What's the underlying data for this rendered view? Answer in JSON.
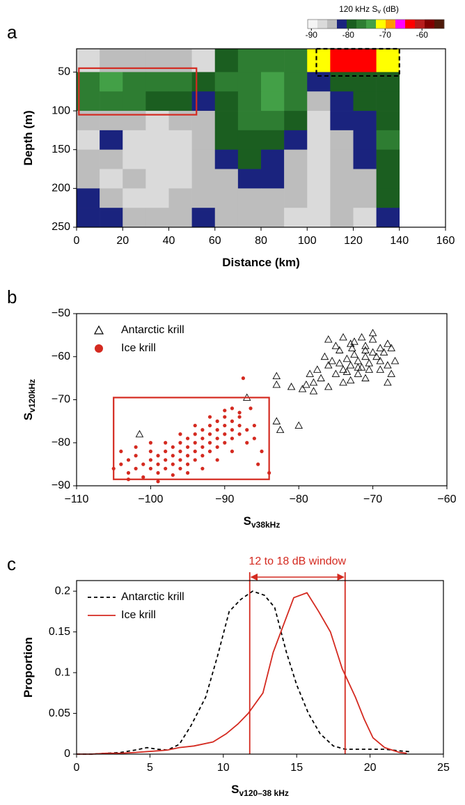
{
  "chart_data": [
    {
      "type": "heatmap",
      "panel": "a",
      "xlabel": "Distance (km)",
      "ylabel": "Depth (m)",
      "xlim": [
        0,
        160
      ],
      "xticks": [
        0,
        20,
        40,
        60,
        80,
        100,
        120,
        140,
        160
      ],
      "ylim": [
        250,
        20
      ],
      "yticks": [
        50,
        100,
        150,
        200,
        250
      ],
      "x_edges": [
        0,
        10,
        20,
        30,
        40,
        50,
        60,
        70,
        80,
        90,
        100,
        110,
        120,
        130,
        140
      ],
      "y_edges": [
        20,
        50,
        75,
        100,
        125,
        150,
        175,
        200,
        225,
        250
      ],
      "z": [
        [
          -86,
          -84,
          -84,
          -85,
          -84,
          -86,
          -80,
          -77,
          -76,
          -76,
          -70,
          -62,
          -64,
          -72
        ],
        [
          -76,
          -75,
          -76,
          -77,
          -77,
          -80,
          -77,
          -76,
          -75,
          -76,
          -82,
          -80,
          -78,
          -80
        ],
        [
          -77,
          -76,
          -77,
          -78,
          -80,
          -82,
          -78,
          -76,
          -75,
          -77,
          -84,
          -82,
          -80,
          -79
        ],
        [
          -84,
          -84,
          -85,
          -86,
          -84,
          -84,
          -79,
          -77,
          -76,
          -80,
          -86,
          -82,
          -81,
          -78
        ],
        [
          -86,
          -82,
          -86,
          -87,
          -86,
          -84,
          -80,
          -78,
          -80,
          -82,
          -86,
          -84,
          -82,
          -77
        ],
        [
          -85,
          -84,
          -86,
          -86,
          -86,
          -84,
          -82,
          -80,
          -82,
          -84,
          -86,
          -84,
          -83,
          -78
        ],
        [
          -84,
          -86,
          -84,
          -86,
          -86,
          -84,
          -84,
          -82,
          -83,
          -84,
          -86,
          -85,
          -84,
          -79
        ],
        [
          -82,
          -84,
          -86,
          -86,
          -85,
          -84,
          -84,
          -84,
          -84,
          -85,
          -86,
          -85,
          -84,
          -80
        ],
        [
          -82,
          -82,
          -84,
          -84,
          -85,
          -83,
          -84,
          -84,
          -84,
          -86,
          -86,
          -85,
          -86,
          -81
        ]
      ],
      "colorbar": {
        "label": "120 kHz S",
        "label_sub": "v",
        "label_unit": " (dB)",
        "clim": [
          -91,
          -54
        ],
        "ticks": [
          -90,
          -80,
          -70,
          -60
        ],
        "colors": [
          "#f4f4f4",
          "#dadada",
          "#bdbdbd",
          "#1a237e",
          "#1b5e20",
          "#2e7d32",
          "#43a047",
          "#ffff00",
          "#ff9800",
          "#ff00ff",
          "#ff0000",
          "#b71c1c",
          "#7f0000",
          "#4e1a0a"
        ]
      },
      "boxes": [
        {
          "x": [
            1,
            52
          ],
          "y": [
            45,
            105
          ],
          "color": "#d42a20",
          "dashed": false
        },
        {
          "x": [
            104,
            140
          ],
          "y": [
            20,
            55
          ],
          "color": "#000000",
          "dashed": true
        }
      ]
    },
    {
      "type": "scatter",
      "panel": "b",
      "xlabel": "S",
      "xlabel_sub": "v38kHz",
      "ylabel": "S",
      "ylabel_sub": "v120kHz",
      "xlim": [
        -110,
        -60
      ],
      "xticks": [
        {
          "value": -110,
          "label": "−110"
        },
        {
          "value": -100,
          "label": "−100"
        },
        {
          "value": -90,
          "label": "−90"
        },
        {
          "value": -80,
          "label": "−80"
        },
        {
          "value": -70,
          "label": "−70"
        },
        {
          "value": -60,
          "label": "−60"
        }
      ],
      "ylim": [
        -90,
        -50
      ],
      "yticks": [
        {
          "value": -90,
          "label": "−90"
        },
        {
          "value": -80,
          "label": "−80"
        },
        {
          "value": -70,
          "label": "−70"
        },
        {
          "value": -60,
          "label": "−60"
        },
        {
          "value": -50,
          "label": "−50"
        }
      ],
      "legend": "upper left",
      "series": [
        {
          "name": "Antarctic krill",
          "color": "#000000",
          "marker": "triangle",
          "x": [
            -72,
            -71,
            -73,
            -70,
            -74,
            -72.5,
            -71.5,
            -69,
            -75,
            -73.5,
            -70.5,
            -68,
            -76,
            -74.5,
            -71,
            -69.5,
            -72,
            -77,
            -78,
            -76.5,
            -75.5,
            -73,
            -70,
            -68.5,
            -67.5,
            -67,
            -69,
            -71,
            -74,
            -77.5,
            -78.5,
            -79,
            -76,
            -73,
            -68,
            -70,
            -71.5,
            -72.5,
            -74,
            -75,
            -76,
            -73.5,
            -72,
            -70.5,
            -69,
            -68,
            -67.5,
            -74.5,
            -71,
            -72.8,
            -101.5,
            -83,
            -82.5,
            -80,
            -83,
            -83,
            -87,
            -81,
            -79.5,
            -78
          ],
          "values": [
            -61,
            -60,
            -62,
            -59,
            -63,
            -59.5,
            -62.5,
            -58,
            -64,
            -60.5,
            -61.5,
            -57,
            -62,
            -58.5,
            -57.5,
            -60,
            -64,
            -65,
            -66,
            -60,
            -61,
            -57,
            -56,
            -59,
            -58,
            -61,
            -63,
            -65,
            -66,
            -63,
            -64,
            -66.5,
            -67,
            -65.5,
            -62,
            -54.5,
            -55.5,
            -56.5,
            -55.5,
            -57.5,
            -56,
            -63.5,
            -62.5,
            -63,
            -61,
            -66,
            -64,
            -61.5,
            -58.5,
            -58,
            -78,
            -75,
            -77,
            -76,
            -64.5,
            -66.5,
            -69.5,
            -67,
            -67.5,
            -68
          ]
        },
        {
          "name": "Ice krill",
          "color": "#d42a20",
          "marker": "circle",
          "x": [
            -104,
            -103,
            -103,
            -102,
            -102,
            -101,
            -101,
            -100,
            -100,
            -100,
            -99,
            -99,
            -99,
            -98,
            -98,
            -98,
            -97,
            -97,
            -97,
            -96,
            -96,
            -96,
            -96,
            -95,
            -95,
            -95,
            -95,
            -94,
            -94,
            -94,
            -94,
            -93,
            -93,
            -93,
            -93,
            -92,
            -92,
            -92,
            -92,
            -91,
            -91,
            -91,
            -91,
            -90,
            -90,
            -90,
            -90,
            -89,
            -89,
            -89,
            -88,
            -88,
            -88,
            -87,
            -87,
            -86,
            -86,
            -85,
            -84,
            -88,
            -89,
            -90,
            -92,
            -94,
            -96,
            -98,
            -100,
            -102,
            -104,
            -105,
            -103,
            -99,
            -97,
            -95,
            -93,
            -91,
            -89,
            -86.5,
            -87.5,
            -85.5
          ],
          "values": [
            -85,
            -84,
            -87,
            -86,
            -83,
            -85,
            -88,
            -84,
            -86,
            -82,
            -83,
            -85,
            -87,
            -82,
            -84,
            -86,
            -81,
            -83,
            -85,
            -80,
            -82,
            -84,
            -86,
            -79,
            -81,
            -83,
            -85,
            -78,
            -80,
            -82,
            -84,
            -77,
            -79,
            -81,
            -83,
            -76,
            -78,
            -80,
            -82,
            -75,
            -77,
            -79,
            -81,
            -74,
            -76,
            -78,
            -80,
            -75,
            -77,
            -79,
            -74,
            -76,
            -78,
            -77,
            -80,
            -76,
            -79,
            -82,
            -87,
            -73,
            -72,
            -72.5,
            -74,
            -76,
            -78,
            -80,
            -80,
            -81,
            -82,
            -86,
            -88.5,
            -89,
            -87.5,
            -87,
            -86,
            -84,
            -82,
            -72,
            -65,
            -85
          ]
        }
      ],
      "boxes": [
        {
          "x": [
            -105,
            -84
          ],
          "y": [
            -88.5,
            -69.5
          ],
          "color": "#d42a20",
          "dashed": false
        }
      ]
    },
    {
      "type": "line",
      "panel": "c",
      "xlabel": "S",
      "xlabel_sub": "v120–38 kHz",
      "ylabel": "Proportion",
      "xlim": [
        0,
        25
      ],
      "xticks": [
        0,
        5,
        10,
        15,
        20,
        25
      ],
      "ylim": [
        0,
        0.213
      ],
      "yticks": [
        0,
        0.05,
        0.1,
        0.15,
        0.2
      ],
      "legend": "upper left",
      "series": [
        {
          "name": "Antarctic krill",
          "color": "#000000",
          "dashed": true,
          "x": [
            0,
            1,
            2,
            3,
            4,
            4.8,
            5.5,
            6.2,
            7,
            7.8,
            8.8,
            9.6,
            10.4,
            11.2,
            12,
            12.8,
            13.5,
            14.3,
            15,
            15.8,
            16.6,
            17.5,
            18.3,
            19,
            20,
            21,
            22,
            22.7
          ],
          "values": [
            0,
            0,
            0.001,
            0.002,
            0.005,
            0.008,
            0.006,
            0.005,
            0.012,
            0.035,
            0.07,
            0.12,
            0.175,
            0.19,
            0.2,
            0.195,
            0.18,
            0.125,
            0.085,
            0.05,
            0.025,
            0.01,
            0.006,
            0.006,
            0.006,
            0.006,
            0.004,
            0.003
          ]
        },
        {
          "name": "Ice krill",
          "color": "#d42a20",
          "dashed": false,
          "x": [
            0,
            1,
            2,
            3,
            4,
            5.5,
            6.2,
            7,
            8,
            9.3,
            10.2,
            11,
            11.7,
            12.7,
            13.4,
            14.8,
            15.7,
            16.5,
            17.3,
            18.1,
            19,
            19.6,
            20.2,
            21,
            22,
            22.5
          ],
          "values": [
            0,
            0,
            0.001,
            0.001,
            0.002,
            0.004,
            0.005,
            0.008,
            0.01,
            0.015,
            0.025,
            0.037,
            0.05,
            0.075,
            0.125,
            0.192,
            0.198,
            0.175,
            0.15,
            0.105,
            0.07,
            0.043,
            0.02,
            0.008,
            0.002,
            0.001
          ]
        }
      ],
      "window": {
        "label": "12 to 18 dB window",
        "x": [
          11.8,
          18.3
        ],
        "color": "#d42a20"
      }
    }
  ]
}
